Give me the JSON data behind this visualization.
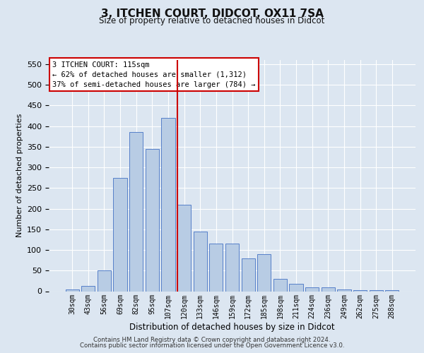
{
  "title": "3, ITCHEN COURT, DIDCOT, OX11 7SA",
  "subtitle": "Size of property relative to detached houses in Didcot",
  "xlabel": "Distribution of detached houses by size in Didcot",
  "ylabel": "Number of detached properties",
  "footer1": "Contains HM Land Registry data © Crown copyright and database right 2024.",
  "footer2": "Contains public sector information licensed under the Open Government Licence v3.0.",
  "bar_labels": [
    "30sqm",
    "43sqm",
    "56sqm",
    "69sqm",
    "82sqm",
    "95sqm",
    "107sqm",
    "120sqm",
    "133sqm",
    "146sqm",
    "159sqm",
    "172sqm",
    "185sqm",
    "198sqm",
    "211sqm",
    "224sqm",
    "236sqm",
    "249sqm",
    "262sqm",
    "275sqm",
    "288sqm"
  ],
  "bar_values": [
    5,
    12,
    50,
    275,
    385,
    345,
    420,
    210,
    145,
    115,
    115,
    80,
    90,
    30,
    18,
    10,
    10,
    5,
    3,
    3,
    2
  ],
  "bar_color": "#b8cce4",
  "bar_edge_color": "#4472c4",
  "fig_bg_color": "#dce6f1",
  "plot_bg_color": "#dce6f1",
  "grid_color": "#ffffff",
  "vline_x_idx": 7,
  "vline_color": "#cc0000",
  "annotation_line1": "3 ITCHEN COURT: 115sqm",
  "annotation_line2": "← 62% of detached houses are smaller (1,312)",
  "annotation_line3": "37% of semi-detached houses are larger (784) →",
  "annotation_box_color": "#cc0000",
  "annotation_box_fill": "#ffffff",
  "ylim": [
    0,
    560
  ],
  "yticks": [
    0,
    50,
    100,
    150,
    200,
    250,
    300,
    350,
    400,
    450,
    500,
    550
  ]
}
